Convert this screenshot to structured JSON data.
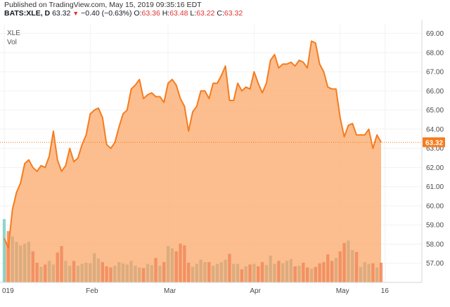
{
  "header": {
    "published": "Published on TradingView.com, May 15, 2019 09:35:16 EDT",
    "symbol": "BATS:XLE, D",
    "last": "63.32",
    "change_arrow": "▼",
    "change": "−0.40 (−0.63%)",
    "open_label": "O:",
    "open": "63.36",
    "high_label": "H:",
    "high": "63.48",
    "low_label": "L:",
    "low": "63.22",
    "close_label": "C:",
    "close": "63.32"
  },
  "legend": {
    "ticker": "XLE",
    "volume": "Vol"
  },
  "colors": {
    "line": "#f57c1f",
    "area": "#fbb37a",
    "vol_up": "#d6a97c",
    "vol_down": "#f08a5d",
    "first_bar": "#7fcfc3",
    "price_badge": "#f57c1f"
  },
  "chart_data": {
    "type": "area",
    "title": "XLE",
    "price_label": "63.32",
    "ylim": [
      56,
      69.5
    ],
    "yticks": [
      "57.00",
      "58.00",
      "59.00",
      "60.00",
      "61.00",
      "62.00",
      "63.00",
      "64.00",
      "65.00",
      "66.00",
      "67.00",
      "68.00",
      "69.00"
    ],
    "xticks": [
      {
        "label": "019",
        "i": 0
      },
      {
        "label": "Feb",
        "i": 21
      },
      {
        "label": "Mar",
        "i": 40
      },
      {
        "label": "Apr",
        "i": 61
      },
      {
        "label": "May",
        "i": 82
      },
      {
        "label": "16",
        "i": 93
      }
    ],
    "closes": [
      58.3,
      57.8,
      59.8,
      60.7,
      61.2,
      62.2,
      62.4,
      62.0,
      61.8,
      62.1,
      62.0,
      62.6,
      63.9,
      62.4,
      61.8,
      62.1,
      63.0,
      62.3,
      62.5,
      63.2,
      63.7,
      64.8,
      65.0,
      65.1,
      64.6,
      63.2,
      63.0,
      63.3,
      64.1,
      64.8,
      65.0,
      66.1,
      66.3,
      66.6,
      65.6,
      65.8,
      65.9,
      65.7,
      65.7,
      65.4,
      66.4,
      66.6,
      66.3,
      65.6,
      65.2,
      63.9,
      64.9,
      65.2,
      66.0,
      66.0,
      65.6,
      66.4,
      66.4,
      66.8,
      67.3,
      65.5,
      65.5,
      66.4,
      66.0,
      66.2,
      66.1,
      67.0,
      66.4,
      65.9,
      66.4,
      67.6,
      67.9,
      67.2,
      67.4,
      67.4,
      67.5,
      67.3,
      67.6,
      67.5,
      67.2,
      68.6,
      68.5,
      67.4,
      67.0,
      66.2,
      66.1,
      66.1,
      64.6,
      63.6,
      64.2,
      64.3,
      63.7,
      63.7,
      63.7,
      64.0,
      63.0,
      63.7,
      63.32
    ],
    "volume": [
      1.06,
      0.86,
      0.77,
      0.68,
      0.62,
      0.65,
      0.68,
      0.52,
      0.33,
      0.26,
      0.3,
      0.36,
      0.3,
      0.5,
      0.61,
      0.36,
      0.28,
      0.36,
      0.28,
      0.31,
      0.33,
      0.32,
      0.49,
      0.4,
      0.34,
      0.27,
      0.25,
      0.28,
      0.34,
      0.32,
      0.3,
      0.36,
      0.28,
      0.25,
      0.24,
      0.31,
      0.29,
      0.41,
      0.28,
      0.34,
      0.61,
      0.57,
      0.52,
      0.65,
      0.62,
      0.33,
      0.26,
      0.31,
      0.38,
      0.34,
      0.34,
      0.28,
      0.31,
      0.34,
      0.38,
      0.48,
      0.31,
      0.31,
      0.22,
      0.27,
      0.3,
      0.31,
      0.27,
      0.34,
      0.29,
      0.45,
      0.31,
      0.36,
      0.32,
      0.36,
      0.39,
      0.27,
      0.28,
      0.33,
      0.25,
      0.23,
      0.26,
      0.32,
      0.34,
      0.47,
      0.36,
      0.41,
      0.52,
      0.66,
      0.7,
      0.54,
      0.51,
      0.26,
      0.34,
      0.31,
      0.32,
      0.25,
      0.33
    ]
  }
}
